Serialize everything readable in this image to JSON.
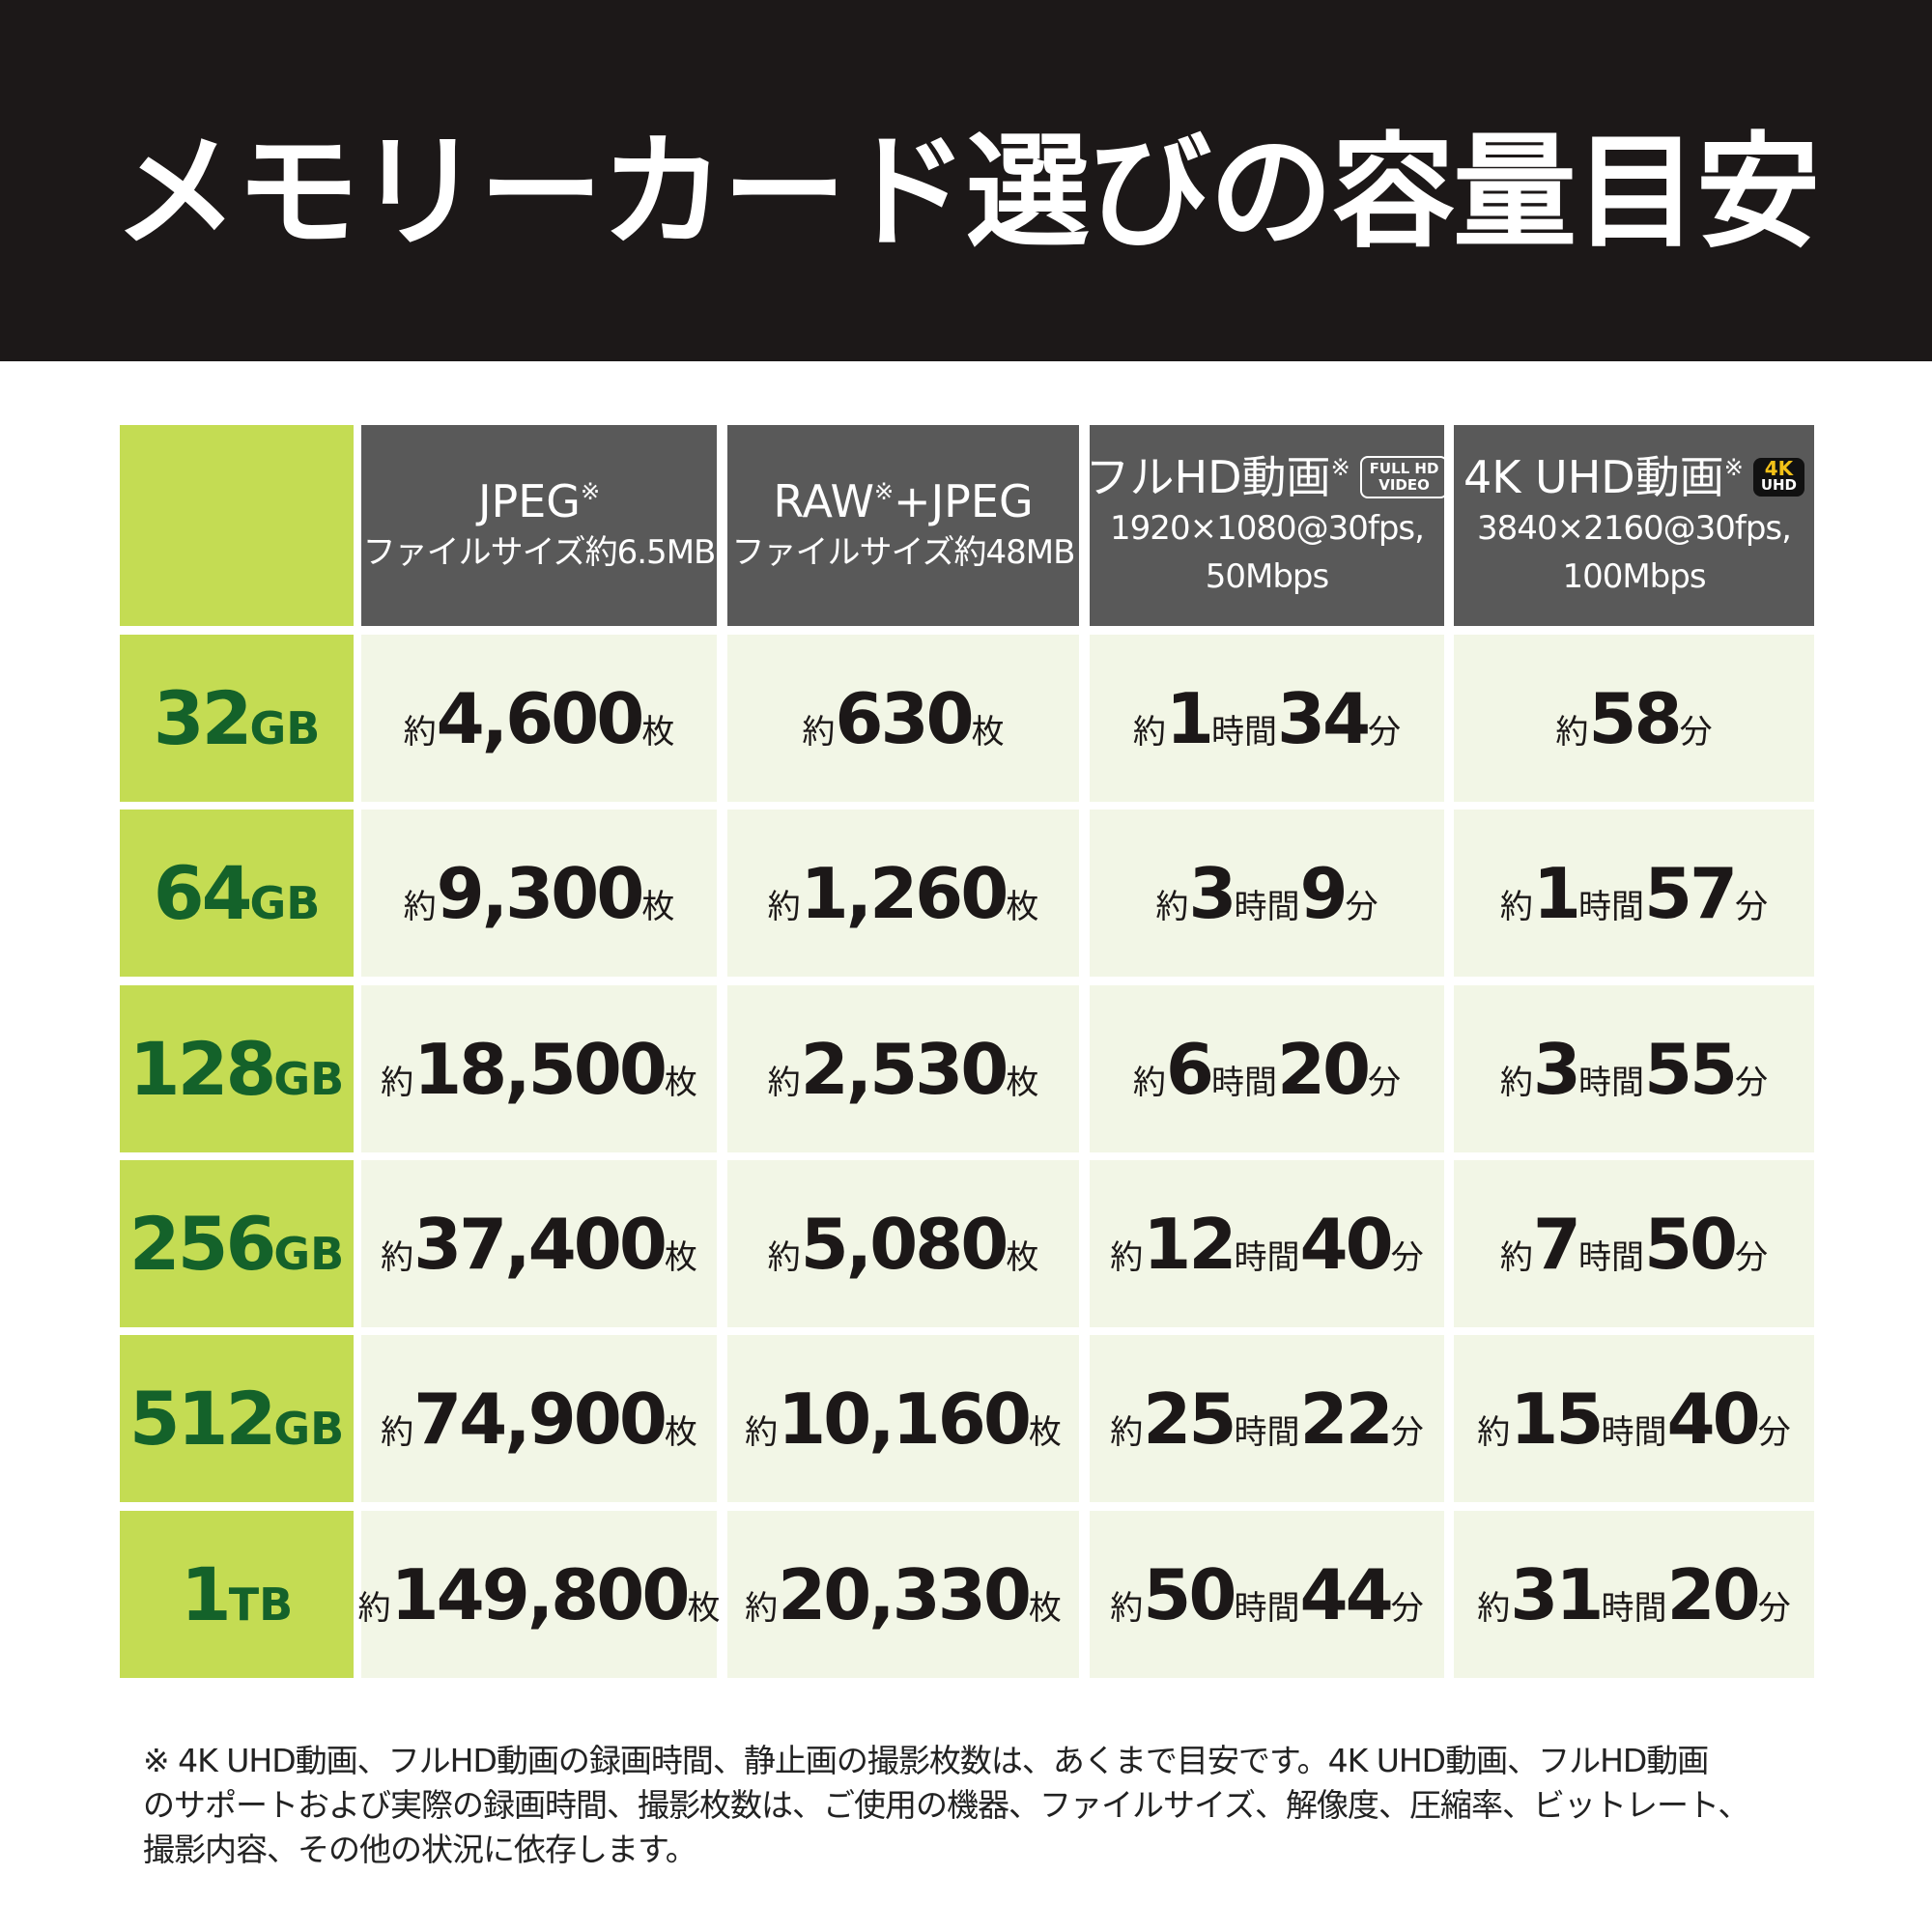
{
  "header": {
    "title": "メモリーカード選びの容量目安"
  },
  "table": {
    "columns": [
      {
        "title_parts": [
          {
            "text": "JPEG"
          },
          {
            "text": "※",
            "sup": true
          }
        ],
        "subtitle": [
          "ファイルサイズ約6.5MB"
        ]
      },
      {
        "title_parts": [
          {
            "text": "RAW"
          },
          {
            "text": "※",
            "sup": true
          },
          {
            "text": "+JPEG"
          }
        ],
        "subtitle": [
          "ファイルサイズ約48MB"
        ]
      },
      {
        "title_parts": [
          {
            "text": "フルHD動画"
          },
          {
            "text": "※",
            "sup": true
          }
        ],
        "badge": [
          "FULL HD",
          "VIDEO"
        ],
        "badge_style": "outline",
        "subtitle": [
          "1920×1080@30fps,",
          "50Mbps"
        ]
      },
      {
        "title_parts": [
          {
            "text": "4K UHD動画"
          },
          {
            "text": "※",
            "sup": true
          }
        ],
        "badge": [
          "4K",
          "UHD"
        ],
        "badge_style": "solid",
        "subtitle": [
          "3840×2160@30fps,",
          "100Mbps"
        ]
      }
    ],
    "rows": [
      {
        "capacity": [
          "32",
          "GB"
        ],
        "cells": [
          [
            "約",
            "4,600",
            "枚"
          ],
          [
            "約",
            "630",
            "枚"
          ],
          [
            "約",
            "1",
            "時間",
            "34",
            "分"
          ],
          [
            "約",
            "58",
            "分"
          ]
        ]
      },
      {
        "capacity": [
          "64",
          "GB"
        ],
        "cells": [
          [
            "約",
            "9,300",
            "枚"
          ],
          [
            "約",
            "1,260",
            "枚"
          ],
          [
            "約",
            "3",
            "時間",
            "9",
            "分"
          ],
          [
            "約",
            "1",
            "時間",
            "57",
            "分"
          ]
        ]
      },
      {
        "capacity": [
          "128",
          "GB"
        ],
        "cells": [
          [
            "約",
            "18,500",
            "枚"
          ],
          [
            "約",
            "2,530",
            "枚"
          ],
          [
            "約",
            "6",
            "時間",
            "20",
            "分"
          ],
          [
            "約",
            "3",
            "時間",
            "55",
            "分"
          ]
        ]
      },
      {
        "capacity": [
          "256",
          "GB"
        ],
        "cells": [
          [
            "約",
            "37,400",
            "枚"
          ],
          [
            "約",
            "5,080",
            "枚"
          ],
          [
            "約",
            "12",
            "時間",
            "40",
            "分"
          ],
          [
            "約",
            "7",
            "時間",
            "50",
            "分"
          ]
        ]
      },
      {
        "capacity": [
          "512",
          "GB"
        ],
        "cells": [
          [
            "約",
            "74,900",
            "枚"
          ],
          [
            "約",
            "10,160",
            "枚"
          ],
          [
            "約",
            "25",
            "時間",
            "22",
            "分"
          ],
          [
            "約",
            "15",
            "時間",
            "40",
            "分"
          ]
        ]
      },
      {
        "capacity": [
          "1",
          "TB"
        ],
        "cells": [
          [
            "約",
            "149,800",
            "枚"
          ],
          [
            "約",
            "20,330",
            "枚"
          ],
          [
            "約",
            "50",
            "時間",
            "44",
            "分"
          ],
          [
            "約",
            "31",
            "時間",
            "20",
            "分"
          ]
        ]
      }
    ]
  },
  "footnote": [
    "※ 4K UHD動画、フルHD動画の録画時間、静止画の撮影枚数は、あくまで目安です。4K UHD動画、フルHD動画",
    "のサポートおよび実際の録画時間、撮影枚数は、ご使用の機器、ファイルサイズ、解像度、圧縮率、ビットレート、",
    "撮影内容、その他の状況に依存します。"
  ]
}
